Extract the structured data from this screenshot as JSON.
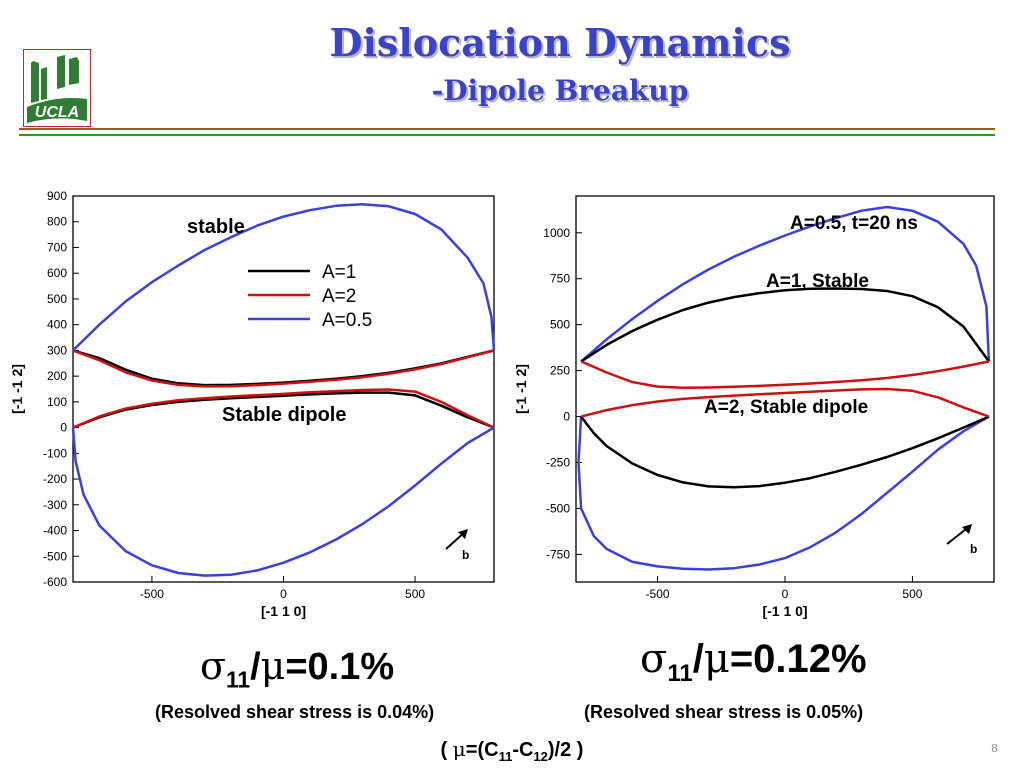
{
  "header": {
    "title": "Dislocation Dynamics",
    "subtitle": "-Dipole Breakup",
    "logo_text": "UCLA",
    "title_color": "#3b42c9",
    "rule_colors": [
      "#a05a10",
      "#2a9a2a"
    ]
  },
  "chart_data": [
    {
      "type": "line",
      "xlabel": "[-1 1 0]",
      "ylabel": "[-1 -1 2]",
      "xlim": [
        -800,
        800
      ],
      "ylim": [
        -600,
        900
      ],
      "xticks": [
        -500,
        0,
        500
      ],
      "yticks": [
        900,
        800,
        700,
        600,
        500,
        400,
        300,
        200,
        100,
        0,
        -100,
        -200,
        -300,
        -400,
        -500,
        -600
      ],
      "grid": false,
      "legend_position": "top-center",
      "series": [
        {
          "name": "A=1",
          "color": "#000000",
          "curves": [
            {
              "x": [
                -800,
                -700,
                -600,
                -500,
                -400,
                -300,
                -200,
                -100,
                0,
                100,
                200,
                300,
                400,
                500,
                600,
                700,
                800
              ],
              "y": [
                300,
                270,
                225,
                190,
                172,
                165,
                166,
                170,
                175,
                182,
                190,
                200,
                213,
                230,
                250,
                275,
                300
              ]
            },
            {
              "x": [
                -800,
                -700,
                -600,
                -500,
                -400,
                -300,
                -200,
                -100,
                0,
                100,
                200,
                300,
                400,
                500,
                600,
                700,
                800
              ],
              "y": [
                0,
                40,
                70,
                88,
                100,
                108,
                114,
                119,
                124,
                129,
                133,
                136,
                136,
                125,
                85,
                40,
                0
              ]
            }
          ]
        },
        {
          "name": "A=2",
          "color": "#cc1111",
          "curves": [
            {
              "x": [
                -800,
                -700,
                -600,
                -500,
                -400,
                -300,
                -200,
                -100,
                0,
                100,
                200,
                300,
                400,
                500,
                600,
                700,
                800
              ],
              "y": [
                300,
                262,
                215,
                183,
                166,
                160,
                161,
                165,
                171,
                178,
                186,
                196,
                209,
                226,
                247,
                273,
                300
              ]
            },
            {
              "x": [
                -800,
                -700,
                -600,
                -500,
                -400,
                -300,
                -200,
                -100,
                0,
                100,
                200,
                300,
                400,
                500,
                600,
                700,
                800
              ],
              "y": [
                0,
                43,
                74,
                93,
                106,
                114,
                121,
                126,
                131,
                137,
                142,
                146,
                148,
                140,
                100,
                48,
                0
              ]
            }
          ]
        },
        {
          "name": "A=0.5",
          "color": "#3a3fe0",
          "curves": [
            {
              "x": [
                -800,
                -700,
                -600,
                -500,
                -400,
                -300,
                -200,
                -100,
                0,
                100,
                200,
                300,
                400,
                500,
                600,
                700,
                760,
                790,
                800
              ],
              "y": [
                300,
                400,
                490,
                565,
                630,
                690,
                740,
                785,
                820,
                845,
                862,
                868,
                860,
                830,
                770,
                660,
                560,
                430,
                300
              ]
            },
            {
              "x": [
                -800,
                -790,
                -760,
                -700,
                -600,
                -500,
                -400,
                -300,
                -200,
                -100,
                0,
                100,
                200,
                300,
                400,
                500,
                600,
                700,
                800
              ],
              "y": [
                0,
                -130,
                -260,
                -380,
                -480,
                -535,
                -565,
                -575,
                -572,
                -555,
                -525,
                -485,
                -435,
                -375,
                -305,
                -225,
                -140,
                -60,
                0
              ]
            }
          ]
        }
      ],
      "annotations": [
        "stable",
        "Stable dipole",
        "b"
      ]
    },
    {
      "type": "line",
      "xlabel": "[-1 1 0]",
      "ylabel": "[-1 -1 2]",
      "xlim": [
        -820,
        820
      ],
      "ylim": [
        -900,
        1200
      ],
      "xticks": [
        -500,
        0,
        500
      ],
      "yticks": [
        1000,
        750,
        500,
        250,
        0,
        -250,
        -500,
        -750
      ],
      "grid": false,
      "curves": [
        {
          "color": "#3a3fe0",
          "x": [
            -800,
            -700,
            -600,
            -500,
            -400,
            -300,
            -200,
            -100,
            0,
            100,
            200,
            300,
            400,
            500,
            600,
            700,
            750,
            790,
            800
          ],
          "y": [
            300,
            420,
            530,
            630,
            720,
            800,
            870,
            930,
            985,
            1035,
            1080,
            1120,
            1140,
            1120,
            1060,
            940,
            820,
            600,
            300
          ]
        },
        {
          "color": "#3a3fe0",
          "x": [
            -800,
            -810,
            -800,
            -750,
            -700,
            -600,
            -500,
            -400,
            -300,
            -200,
            -100,
            0,
            100,
            200,
            300,
            400,
            500,
            600,
            700,
            800
          ],
          "y": [
            0,
            -250,
            -500,
            -650,
            -720,
            -790,
            -815,
            -828,
            -832,
            -825,
            -805,
            -770,
            -710,
            -630,
            -530,
            -415,
            -300,
            -180,
            -80,
            0
          ]
        },
        {
          "color": "#000000",
          "x": [
            -800,
            -700,
            -600,
            -500,
            -400,
            -300,
            -200,
            -100,
            0,
            100,
            200,
            300,
            400,
            500,
            600,
            700,
            800
          ],
          "y": [
            300,
            390,
            465,
            527,
            580,
            620,
            650,
            672,
            687,
            695,
            697,
            694,
            683,
            655,
            595,
            490,
            300
          ]
        },
        {
          "color": "#000000",
          "x": [
            -800,
            -750,
            -700,
            -600,
            -500,
            -400,
            -300,
            -200,
            -100,
            0,
            100,
            200,
            300,
            400,
            500,
            600,
            700,
            800
          ],
          "y": [
            0,
            -90,
            -160,
            -255,
            -318,
            -358,
            -380,
            -385,
            -378,
            -360,
            -335,
            -300,
            -262,
            -220,
            -172,
            -118,
            -60,
            0
          ]
        },
        {
          "color": "#cc1111",
          "x": [
            -800,
            -700,
            -600,
            -500,
            -400,
            -300,
            -200,
            -100,
            0,
            100,
            200,
            300,
            400,
            500,
            600,
            700,
            800
          ],
          "y": [
            300,
            240,
            188,
            163,
            157,
            158,
            162,
            167,
            173,
            180,
            188,
            198,
            210,
            226,
            247,
            272,
            300
          ]
        },
        {
          "color": "#cc1111",
          "x": [
            -800,
            -700,
            -600,
            -500,
            -400,
            -300,
            -200,
            -100,
            0,
            100,
            200,
            300,
            400,
            500,
            600,
            700,
            800
          ],
          "y": [
            0,
            35,
            62,
            82,
            96,
            106,
            114,
            121,
            128,
            135,
            142,
            148,
            150,
            140,
            105,
            50,
            0
          ]
        }
      ],
      "annotations": [
        "A=0.5,  t=20 ns",
        "A=1, Stable",
        "A=2, Stable dipole",
        "b"
      ]
    }
  ],
  "results": {
    "left": {
      "sigma": "σ",
      "sub": "11",
      "slash": "/",
      "mu": "μ",
      "value": "=0.1%",
      "note": "(Resolved shear stress is 0.04%)"
    },
    "right": {
      "sigma": "σ",
      "sub": "11",
      "slash": "/",
      "mu": "μ",
      "value": "=0.12%",
      "note": "(Resolved shear stress is 0.05%)"
    }
  },
  "formula": {
    "open": "( ",
    "mu": "μ",
    "eq": "=(C",
    "s1": "11",
    "mid": "-C",
    "s2": "12",
    "close": ")/2 )"
  },
  "page_number": "8"
}
